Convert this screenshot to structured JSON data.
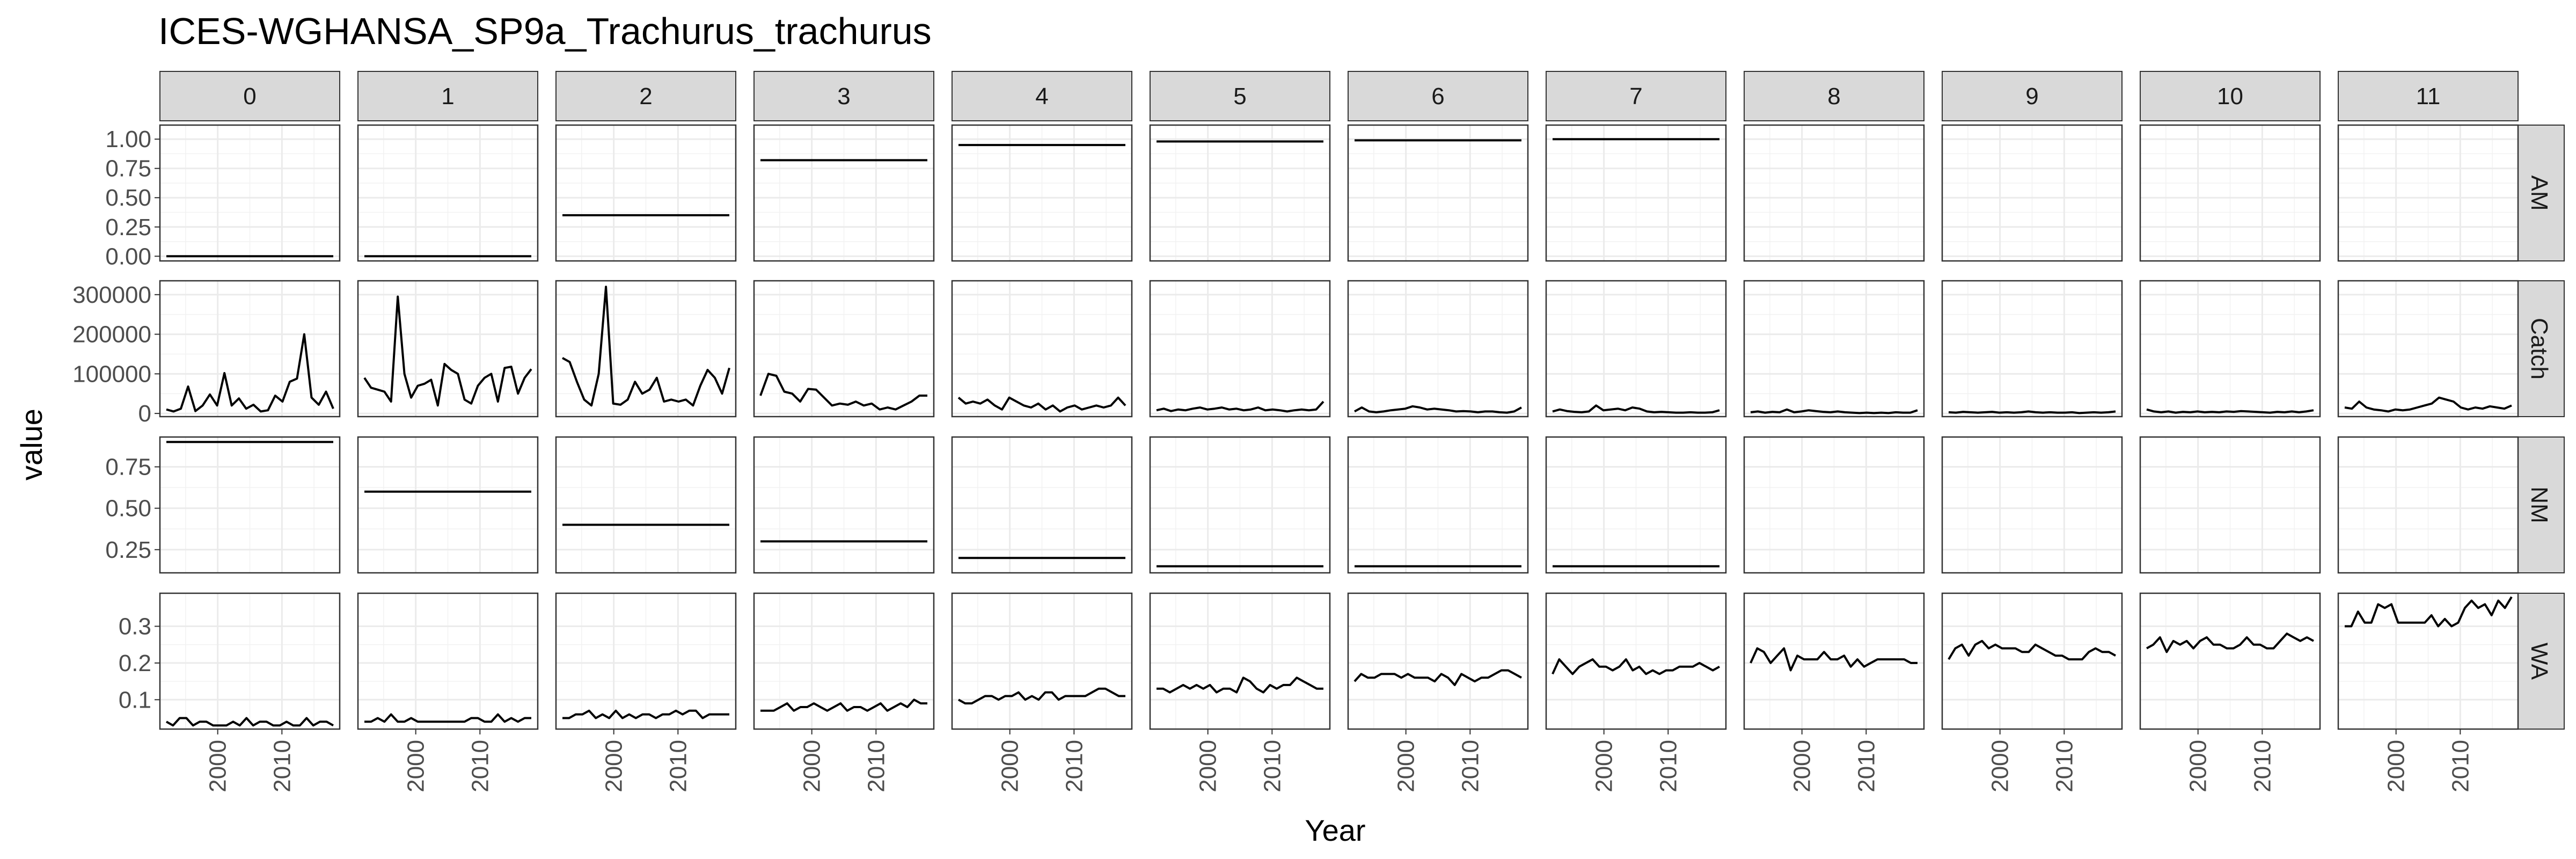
{
  "chart_data": {
    "type": "line",
    "title": "ICES-WGHANSA_SP9a_Trachurus_trachurus",
    "xlabel": "Year",
    "ylabel": "value",
    "x_range": [
      1991,
      2019
    ],
    "x_ticks": [
      2000,
      2010
    ],
    "x_tick_labels": [
      "2000",
      "2010"
    ],
    "columns": [
      "0",
      "1",
      "2",
      "3",
      "4",
      "5",
      "6",
      "7",
      "8",
      "9",
      "10",
      "11"
    ],
    "rows": [
      {
        "name": "AM",
        "ylim": [
          -0.04,
          1.12
        ],
        "yticks": [
          0,
          0.25,
          0.5,
          0.75,
          1.0
        ],
        "ytick_labels": [
          "0.00",
          "0.25",
          "0.50",
          "0.75",
          "1.00"
        ]
      },
      {
        "name": "Catch",
        "ylim": [
          -8000,
          335000
        ],
        "yticks": [
          0,
          100000,
          200000,
          300000
        ],
        "ytick_labels": [
          "0",
          "100000",
          "200000",
          "300000"
        ]
      },
      {
        "name": "NM",
        "ylim": [
          0.11,
          0.93
        ],
        "yticks": [
          0.25,
          0.5,
          0.75
        ],
        "ytick_labels": [
          "0.25",
          "0.50",
          "0.75"
        ]
      },
      {
        "name": "WA",
        "ylim": [
          0.02,
          0.39
        ],
        "yticks": [
          0.1,
          0.2,
          0.3
        ],
        "ytick_labels": [
          "0.1",
          "0.2",
          "0.3"
        ]
      }
    ],
    "years": [
      1992,
      1993,
      1994,
      1995,
      1996,
      1997,
      1998,
      1999,
      2000,
      2001,
      2002,
      2003,
      2004,
      2005,
      2006,
      2007,
      2008,
      2009,
      2010,
      2011,
      2012,
      2013,
      2014,
      2015,
      2016,
      2017,
      2018
    ],
    "constants": {
      "AM": [
        0,
        0,
        0.35,
        0.82,
        0.95,
        0.98,
        0.99,
        1.0,
        null,
        null,
        null,
        null
      ],
      "NM": [
        0.9,
        0.6,
        0.4,
        0.3,
        0.2,
        0.15,
        0.15,
        0.15,
        null,
        null,
        null,
        null
      ]
    },
    "catch": [
      [
        10000,
        5000,
        12000,
        68000,
        6000,
        20000,
        48000,
        20000,
        102000,
        20000,
        38000,
        12000,
        22000,
        5000,
        8000,
        45000,
        30000,
        80000,
        88000,
        200000,
        40000,
        22000,
        55000,
        12000
      ],
      [
        90000,
        65000,
        60000,
        55000,
        30000,
        295000,
        100000,
        40000,
        70000,
        75000,
        85000,
        20000,
        125000,
        110000,
        100000,
        35000,
        25000,
        70000,
        90000,
        100000,
        30000,
        115000,
        118000,
        50000,
        90000,
        112000
      ],
      [
        140000,
        130000,
        80000,
        35000,
        20000,
        100000,
        320000,
        25000,
        22000,
        35000,
        80000,
        50000,
        60000,
        90000,
        30000,
        35000,
        30000,
        35000,
        20000,
        70000,
        110000,
        90000,
        50000,
        115000
      ],
      [
        45000,
        100000,
        95000,
        55000,
        50000,
        30000,
        62000,
        60000,
        40000,
        20000,
        25000,
        22000,
        30000,
        20000,
        25000,
        10000,
        15000,
        10000,
        20000,
        30000,
        45000,
        45000
      ],
      [
        40000,
        25000,
        30000,
        25000,
        35000,
        20000,
        10000,
        40000,
        30000,
        20000,
        15000,
        25000,
        10000,
        20000,
        5000,
        15000,
        20000,
        10000,
        15000,
        20000,
        15000,
        20000,
        40000,
        20000
      ],
      [
        8000,
        12000,
        6000,
        10000,
        8000,
        12000,
        15000,
        10000,
        12000,
        15000,
        10000,
        12000,
        8000,
        10000,
        15000,
        8000,
        10000,
        8000,
        5000,
        8000,
        10000,
        8000,
        10000,
        30000
      ],
      [
        5000,
        15000,
        5000,
        3000,
        5000,
        8000,
        10000,
        12000,
        18000,
        15000,
        10000,
        12000,
        10000,
        8000,
        5000,
        6000,
        5000,
        3000,
        5000,
        5000,
        3000,
        2000,
        5000,
        15000
      ],
      [
        5000,
        10000,
        6000,
        4000,
        3000,
        5000,
        20000,
        8000,
        10000,
        12000,
        8000,
        15000,
        12000,
        5000,
        3000,
        4000,
        3000,
        2000,
        2000,
        3000,
        2000,
        2000,
        3000,
        8000
      ],
      [
        3000,
        5000,
        2000,
        4000,
        3000,
        10000,
        3000,
        5000,
        8000,
        6000,
        4000,
        3000,
        5000,
        3000,
        2000,
        1000,
        2000,
        1000,
        2000,
        1000,
        3000,
        2000,
        2000,
        8000
      ],
      [
        3000,
        2000,
        4000,
        3000,
        2000,
        3000,
        4000,
        2000,
        3000,
        2000,
        3000,
        5000,
        3000,
        2000,
        3000,
        2000,
        2000,
        3000,
        1000,
        2000,
        3000,
        2000,
        3000,
        5000
      ],
      [
        10000,
        5000,
        3000,
        5000,
        2000,
        4000,
        3000,
        5000,
        3000,
        4000,
        3000,
        5000,
        4000,
        6000,
        5000,
        4000,
        3000,
        2000,
        4000,
        3000,
        5000,
        3000,
        5000,
        8000
      ],
      [
        15000,
        12000,
        30000,
        15000,
        10000,
        8000,
        5000,
        10000,
        8000,
        10000,
        15000,
        20000,
        25000,
        40000,
        35000,
        30000,
        15000,
        10000,
        15000,
        12000,
        18000,
        15000,
        12000,
        20000
      ]
    ],
    "wa": [
      [
        0.04,
        0.03,
        0.05,
        0.05,
        0.03,
        0.04,
        0.04,
        0.03,
        0.03,
        0.03,
        0.04,
        0.03,
        0.05,
        0.03,
        0.04,
        0.04,
        0.03,
        0.03,
        0.04,
        0.03,
        0.03,
        0.05,
        0.03,
        0.04,
        0.04,
        0.03
      ],
      [
        0.04,
        0.04,
        0.05,
        0.04,
        0.06,
        0.04,
        0.04,
        0.05,
        0.04,
        0.04,
        0.04,
        0.04,
        0.04,
        0.04,
        0.04,
        0.04,
        0.05,
        0.05,
        0.04,
        0.04,
        0.06,
        0.04,
        0.05,
        0.04,
        0.05,
        0.05
      ],
      [
        0.05,
        0.05,
        0.06,
        0.06,
        0.07,
        0.05,
        0.06,
        0.05,
        0.07,
        0.05,
        0.06,
        0.05,
        0.06,
        0.06,
        0.05,
        0.06,
        0.06,
        0.07,
        0.06,
        0.07,
        0.07,
        0.05,
        0.06,
        0.06,
        0.06,
        0.06
      ],
      [
        0.07,
        0.07,
        0.07,
        0.08,
        0.09,
        0.07,
        0.08,
        0.08,
        0.09,
        0.08,
        0.07,
        0.08,
        0.09,
        0.07,
        0.08,
        0.08,
        0.07,
        0.08,
        0.09,
        0.07,
        0.08,
        0.09,
        0.08,
        0.1,
        0.09,
        0.09
      ],
      [
        0.1,
        0.09,
        0.09,
        0.1,
        0.11,
        0.11,
        0.1,
        0.11,
        0.11,
        0.12,
        0.1,
        0.11,
        0.1,
        0.12,
        0.12,
        0.1,
        0.11,
        0.11,
        0.11,
        0.11,
        0.12,
        0.13,
        0.13,
        0.12,
        0.11,
        0.11
      ],
      [
        0.13,
        0.13,
        0.12,
        0.13,
        0.14,
        0.13,
        0.14,
        0.13,
        0.14,
        0.12,
        0.13,
        0.13,
        0.12,
        0.16,
        0.15,
        0.13,
        0.12,
        0.14,
        0.13,
        0.14,
        0.14,
        0.16,
        0.15,
        0.14,
        0.13,
        0.13
      ],
      [
        0.15,
        0.17,
        0.16,
        0.16,
        0.17,
        0.17,
        0.17,
        0.16,
        0.17,
        0.16,
        0.16,
        0.16,
        0.15,
        0.17,
        0.16,
        0.14,
        0.17,
        0.16,
        0.15,
        0.16,
        0.16,
        0.17,
        0.18,
        0.18,
        0.17,
        0.16
      ],
      [
        0.17,
        0.21,
        0.19,
        0.17,
        0.19,
        0.2,
        0.21,
        0.19,
        0.19,
        0.18,
        0.19,
        0.21,
        0.18,
        0.19,
        0.17,
        0.18,
        0.17,
        0.18,
        0.18,
        0.19,
        0.19,
        0.19,
        0.2,
        0.19,
        0.18,
        0.19
      ],
      [
        0.2,
        0.24,
        0.23,
        0.2,
        0.22,
        0.24,
        0.18,
        0.22,
        0.21,
        0.21,
        0.21,
        0.23,
        0.21,
        0.21,
        0.22,
        0.19,
        0.21,
        0.19,
        0.2,
        0.21,
        0.21,
        0.21,
        0.21,
        0.21,
        0.2,
        0.2
      ],
      [
        0.21,
        0.24,
        0.25,
        0.22,
        0.25,
        0.26,
        0.24,
        0.25,
        0.24,
        0.24,
        0.24,
        0.23,
        0.23,
        0.25,
        0.24,
        0.23,
        0.22,
        0.22,
        0.21,
        0.21,
        0.21,
        0.23,
        0.24,
        0.23,
        0.23,
        0.22
      ],
      [
        0.24,
        0.25,
        0.27,
        0.23,
        0.26,
        0.25,
        0.26,
        0.24,
        0.26,
        0.27,
        0.25,
        0.25,
        0.24,
        0.24,
        0.25,
        0.27,
        0.25,
        0.25,
        0.24,
        0.24,
        0.26,
        0.28,
        0.27,
        0.26,
        0.27,
        0.26
      ],
      [
        0.3,
        0.3,
        0.34,
        0.31,
        0.31,
        0.36,
        0.35,
        0.36,
        0.31,
        0.31,
        0.31,
        0.31,
        0.31,
        0.33,
        0.3,
        0.32,
        0.3,
        0.31,
        0.35,
        0.37,
        0.35,
        0.36,
        0.33,
        0.37,
        0.35,
        0.38
      ]
    ]
  }
}
